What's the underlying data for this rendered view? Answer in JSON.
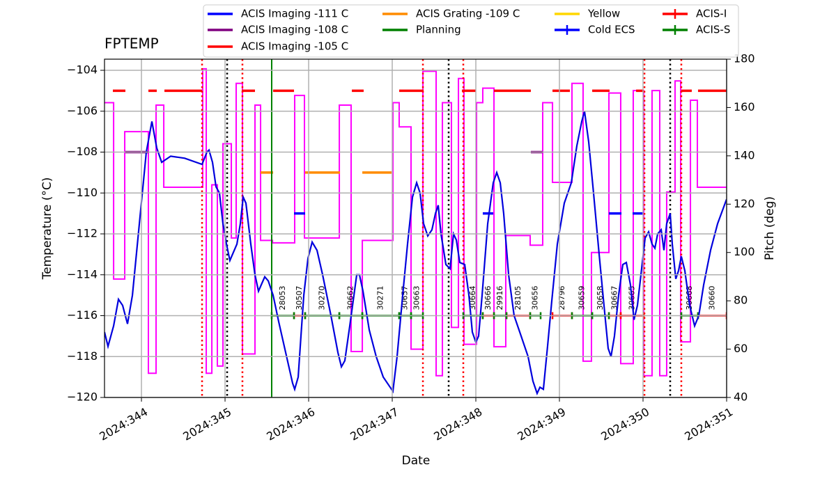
{
  "chart_data": {
    "type": "line",
    "title": "FPTEMP",
    "xlabel": "Date",
    "ylabel": "Temperature (°C)",
    "y2label": "Pitch (deg)",
    "y2color": "#ff00ff",
    "grid": true,
    "xlim": [
      343.558,
      351.0
    ],
    "ylim": [
      -120,
      -103.455
    ],
    "y2lim": [
      40,
      180
    ],
    "xticks": [
      {
        "value": 344,
        "label": "2024:344"
      },
      {
        "value": 345,
        "label": "2024:345"
      },
      {
        "value": 346,
        "label": "2024:346"
      },
      {
        "value": 347,
        "label": "2024:347"
      },
      {
        "value": 348,
        "label": "2024:348"
      },
      {
        "value": 349,
        "label": "2024:349"
      },
      {
        "value": 350,
        "label": "2024:350"
      },
      {
        "value": 351,
        "label": "2024:351"
      }
    ],
    "yticks": [
      {
        "value": -104,
        "label": "−104"
      },
      {
        "value": -106,
        "label": "−106"
      },
      {
        "value": -108,
        "label": "−108"
      },
      {
        "value": -110,
        "label": "−110"
      },
      {
        "value": -112,
        "label": "−112"
      },
      {
        "value": -114,
        "label": "−114"
      },
      {
        "value": -116,
        "label": "−116"
      },
      {
        "value": -118,
        "label": "−118"
      },
      {
        "value": -120,
        "label": "−120"
      }
    ],
    "y2ticks": [
      40,
      60,
      80,
      100,
      120,
      140,
      160,
      180
    ],
    "temperature": {
      "color": "#0000dd",
      "x": [
        343.558,
        343.6,
        343.667,
        343.725,
        343.775,
        343.833,
        343.892,
        343.975,
        344.058,
        344.125,
        344.183,
        344.242,
        344.35,
        344.517,
        344.725,
        344.783,
        344.808,
        344.85,
        344.892,
        344.933,
        344.975,
        345.017,
        345.058,
        345.142,
        345.183,
        345.217,
        345.25,
        345.308,
        345.358,
        345.4,
        345.475,
        345.517,
        345.575,
        345.642,
        345.725,
        345.808,
        345.833,
        345.875,
        345.908,
        345.942,
        345.992,
        346.042,
        346.1,
        346.167,
        346.267,
        346.35,
        346.392,
        346.433,
        346.492,
        346.542,
        346.575,
        346.608,
        346.65,
        346.725,
        346.808,
        346.892,
        346.975,
        347.008,
        347.058,
        347.125,
        347.183,
        347.242,
        347.292,
        347.333,
        347.375,
        347.425,
        347.475,
        347.517,
        347.55,
        347.583,
        347.642,
        347.692,
        347.733,
        347.767,
        347.808,
        347.867,
        347.917,
        347.958,
        348.0,
        348.033,
        348.075,
        348.142,
        348.208,
        348.25,
        348.292,
        348.333,
        348.392,
        348.458,
        348.542,
        348.625,
        348.683,
        348.733,
        348.767,
        348.808,
        348.858,
        348.908,
        348.975,
        349.058,
        349.142,
        349.208,
        349.267,
        349.3,
        349.35,
        349.408,
        349.475,
        349.533,
        349.583,
        349.617,
        349.658,
        349.708,
        349.758,
        349.8,
        349.85,
        349.892,
        349.933,
        349.975,
        350.025,
        350.067,
        350.108,
        350.142,
        350.175,
        350.217,
        350.25,
        350.283,
        350.325,
        350.35,
        350.392,
        350.425,
        350.458,
        350.5,
        350.558,
        350.617,
        350.667,
        350.725,
        350.808,
        350.892,
        351.0
      ],
      "values": [
        -116.8,
        -117.5,
        -116.5,
        -115.2,
        -115.5,
        -116.4,
        -115,
        -111.5,
        -108,
        -106.5,
        -107.8,
        -108.5,
        -108.2,
        -108.3,
        -108.6,
        -108,
        -107.9,
        -108.5,
        -109.7,
        -110,
        -111.5,
        -112.5,
        -113.3,
        -112.5,
        -111.5,
        -110.2,
        -110.5,
        -112.5,
        -114,
        -114.8,
        -114.1,
        -114.3,
        -115,
        -116.3,
        -117.8,
        -119.3,
        -119.6,
        -119,
        -117,
        -115,
        -113.2,
        -112.4,
        -112.8,
        -114,
        -116,
        -117.8,
        -118.5,
        -118.2,
        -116.5,
        -115,
        -114,
        -114,
        -114.8,
        -116.7,
        -118,
        -119,
        -119.5,
        -119.7,
        -118,
        -115,
        -112.5,
        -110.2,
        -109.5,
        -110,
        -111.5,
        -112.1,
        -111.8,
        -111,
        -110.6,
        -112,
        -113.5,
        -113.7,
        -112,
        -112.3,
        -113.4,
        -113.5,
        -115,
        -116.8,
        -117.3,
        -117,
        -115,
        -111.5,
        -109.5,
        -109,
        -109.5,
        -111,
        -114,
        -116,
        -117,
        -118,
        -119.2,
        -119.8,
        -119.5,
        -119.6,
        -117.5,
        -115.3,
        -112.5,
        -110.5,
        -109.5,
        -107.7,
        -106.5,
        -106,
        -107.5,
        -110,
        -113,
        -115.5,
        -117.6,
        -118,
        -117,
        -115,
        -113.5,
        -113.4,
        -114.5,
        -116.2,
        -115.5,
        -114,
        -112.2,
        -111.9,
        -112.5,
        -112.7,
        -112,
        -111.8,
        -112.8,
        -111.5,
        -111,
        -112.5,
        -114.2,
        -113.8,
        -113.1,
        -113.8,
        -115.5,
        -116.5,
        -116,
        -114.5,
        -112.8,
        -111.5,
        -110.3
      ]
    },
    "pitch": {
      "color": "#ff00ff",
      "axis": "y2",
      "drawstyle": "steps-post",
      "x": [
        343.558,
        343.667,
        343.8,
        344.083,
        344.175,
        344.267,
        344.733,
        344.775,
        344.842,
        344.908,
        344.975,
        345.075,
        345.133,
        345.208,
        345.358,
        345.425,
        345.567,
        345.833,
        345.95,
        346.367,
        346.508,
        346.642,
        347.008,
        347.083,
        347.225,
        347.367,
        347.525,
        347.6,
        347.708,
        347.792,
        347.858,
        348.008,
        348.083,
        348.217,
        348.358,
        348.65,
        348.8,
        348.917,
        349.15,
        349.283,
        349.383,
        349.592,
        349.733,
        349.883,
        350.008,
        350.108,
        350.2,
        350.283,
        350.383,
        350.45,
        350.567,
        350.65,
        351.0
      ],
      "values": [
        162,
        89,
        150,
        50,
        161,
        127,
        176,
        50,
        128,
        53,
        145,
        106,
        170,
        58,
        161,
        105,
        104,
        165,
        106,
        161,
        59,
        105,
        162,
        152,
        60,
        175,
        49,
        162,
        69,
        172,
        62,
        162,
        168,
        61,
        107,
        103,
        162,
        129,
        170,
        55,
        100,
        166,
        54,
        167,
        49,
        167,
        49,
        125,
        171,
        63,
        163,
        127,
        127
      ]
    },
    "vlines": [
      {
        "color": "#ff0000",
        "x": [
          344.725,
          345.208,
          347.367,
          347.85,
          350.017,
          350.458
        ]
      },
      {
        "color": "#000000",
        "x": [
          345.025,
          347.675,
          350.325
        ]
      }
    ],
    "series": [
      {
        "name": "ACIS Imaging -111 C",
        "color": "#0000ff",
        "kind": "limit",
        "x": [
          345.825,
          348.083,
          349.592,
          349.875
        ],
        "x_end": [
          345.958,
          348.208,
          349.742,
          350.008
        ],
        "values": [
          -111,
          -111,
          -111,
          -111
        ]
      },
      {
        "name": "ACIS Imaging -108 C",
        "color": "#800080",
        "kind": "limit",
        "x": [
          343.808,
          348.658
        ],
        "x_end": [
          344.083,
          348.8
        ],
        "values": [
          -108,
          -108
        ]
      },
      {
        "name": "ACIS Imaging -105 C",
        "color": "#ff0000",
        "kind": "limit",
        "x": [
          343.658,
          344.083,
          344.275,
          345.2,
          345.575,
          346.517,
          347.083,
          347.833,
          348.217,
          348.917,
          349.392,
          349.917,
          350.458,
          350.658
        ],
        "x_end": [
          343.808,
          344.183,
          344.725,
          345.358,
          345.825,
          346.658,
          347.375,
          348.0,
          348.658,
          349.125,
          349.6,
          350.008,
          350.583,
          351.0
        ],
        "values": [
          -105,
          -105,
          -105,
          -105,
          -105,
          -105,
          -105,
          -105,
          -105,
          -105,
          -105,
          -105,
          -105,
          -105
        ]
      },
      {
        "name": "ACIS Grating -109 C",
        "color": "#ff8c00",
        "kind": "limit",
        "x": [
          345.425,
          345.958,
          346.642
        ],
        "x_end": [
          345.575,
          346.375,
          346.992
        ],
        "values": [
          -109,
          -109,
          -109
        ]
      },
      {
        "name": "Planning",
        "color": "#008000",
        "kind": "vline",
        "x": [
          345.558
        ]
      },
      {
        "name": "Yellow",
        "color": "#ffd700",
        "kind": "limit",
        "x": [],
        "x_end": [],
        "values": []
      },
      {
        "name": "Cold ECS",
        "color": "#0000ff",
        "kind": "errorbar",
        "x": [],
        "x_end": [],
        "values": [],
        "labels": []
      },
      {
        "name": "ACIS-I",
        "color": "#ff0000",
        "kind": "errorbar",
        "labels": [
          "30507",
          "30666",
          "28105",
          "28796",
          "30667",
          "30665",
          "30660"
        ],
        "x": [
          345.825,
          348.083,
          348.367,
          348.917,
          349.592,
          349.733,
          350.658
        ],
        "x_end": [
          345.958,
          348.217,
          348.65,
          349.15,
          349.733,
          350.008,
          351.0
        ],
        "values": [
          -116,
          -116,
          -116,
          -116,
          -116,
          -116,
          -116
        ]
      },
      {
        "name": "ACIS-S",
        "color": "#008000",
        "kind": "errorbar",
        "labels": [
          "28053",
          "30270",
          "30662",
          "30271",
          "30657",
          "30663",
          "30664",
          "29916",
          "30656",
          "30659",
          "30658",
          "30668"
        ],
        "x": [
          345.558,
          345.958,
          346.367,
          346.642,
          347.083,
          347.225,
          347.85,
          348.217,
          348.65,
          349.15,
          349.392,
          350.458
        ],
        "x_end": [
          345.825,
          346.367,
          346.642,
          347.083,
          347.225,
          347.367,
          348.083,
          348.367,
          348.775,
          349.392,
          349.592,
          350.658
        ],
        "values": [
          -116,
          -116,
          -116,
          -116,
          -116,
          -116,
          -116,
          -116,
          -116,
          -116,
          -116,
          -116
        ]
      }
    ]
  }
}
